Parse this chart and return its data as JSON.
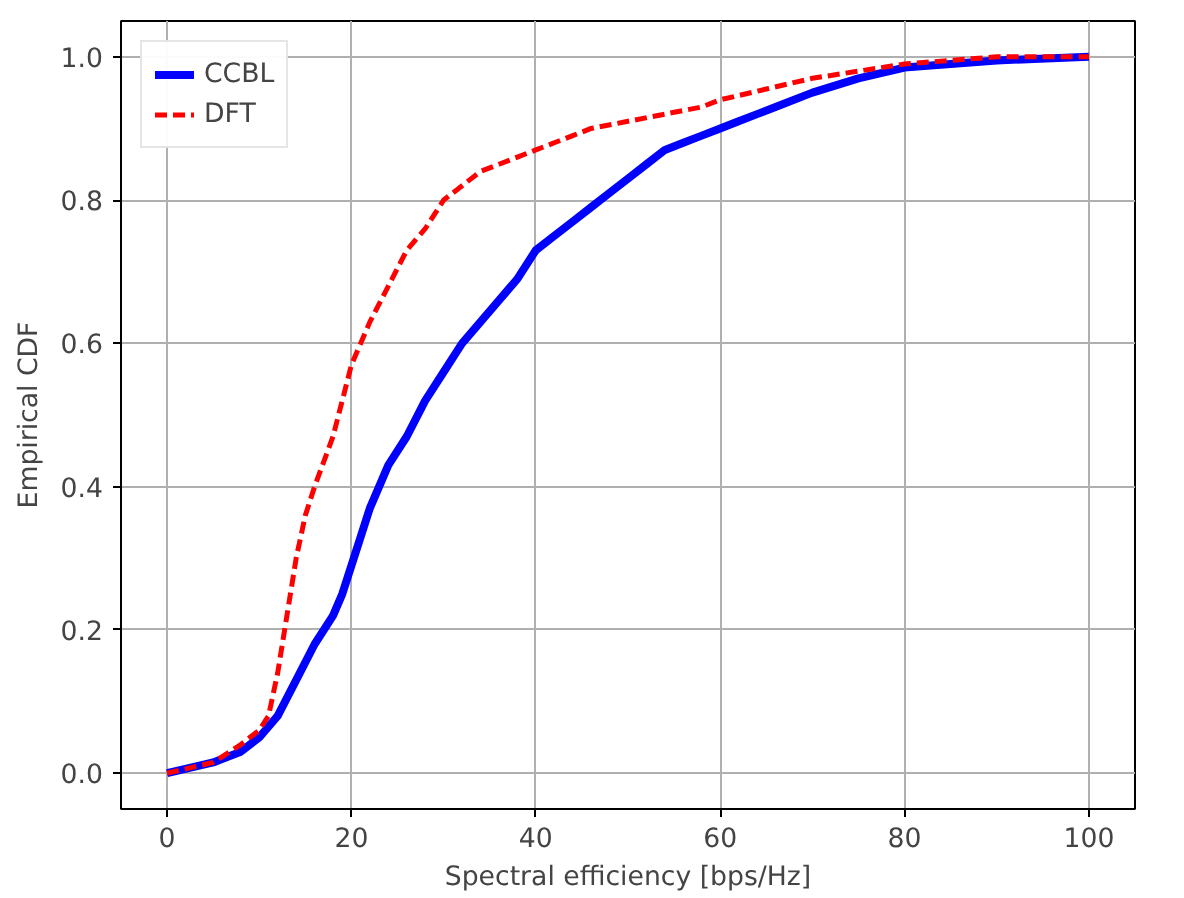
{
  "chart_data": {
    "type": "line",
    "xlabel": "Spectral efficiency [bps/Hz]",
    "ylabel": "Empirical CDF",
    "xlim": [
      -5,
      105
    ],
    "ylim": [
      -0.05,
      1.05
    ],
    "xticks": [
      0,
      20,
      40,
      60,
      80,
      100
    ],
    "yticks": [
      {
        "value": 0,
        "label": "0.0"
      },
      {
        "value": 0.2,
        "label": "0.2"
      },
      {
        "value": 0.4,
        "label": "0.4"
      },
      {
        "value": 0.6,
        "label": "0.6"
      },
      {
        "value": 0.8,
        "label": "0.8"
      },
      {
        "value": 1,
        "label": "1.0"
      }
    ],
    "grid": true,
    "legend": "top left",
    "series": [
      {
        "name": "CCBL",
        "color": "#0000ff",
        "line_style": "solid",
        "x": [
          0,
          5,
          8,
          10,
          12,
          14,
          16,
          18,
          19,
          20,
          22,
          24,
          26,
          28,
          30,
          32,
          34,
          36,
          38,
          40,
          42,
          44,
          46,
          48,
          50,
          52,
          54,
          56,
          58,
          60,
          62,
          64,
          66,
          70,
          75,
          80,
          85,
          90,
          100
        ],
        "values": [
          0,
          0.015,
          0.03,
          0.05,
          0.08,
          0.13,
          0.18,
          0.22,
          0.25,
          0.29,
          0.37,
          0.43,
          0.47,
          0.52,
          0.56,
          0.6,
          0.63,
          0.66,
          0.69,
          0.73,
          0.75,
          0.77,
          0.79,
          0.81,
          0.83,
          0.85,
          0.87,
          0.88,
          0.89,
          0.9,
          0.91,
          0.92,
          0.93,
          0.95,
          0.97,
          0.985,
          0.99,
          0.995,
          1.0
        ]
      },
      {
        "name": "DFT",
        "color": "#ff0000",
        "line_style": "dashed",
        "x": [
          0,
          5,
          8,
          10,
          11,
          12,
          13,
          14,
          15,
          16,
          18,
          19,
          20,
          22,
          24,
          26,
          28,
          30,
          32,
          34,
          36,
          38,
          40,
          42,
          44,
          46,
          50,
          54,
          58,
          60,
          65,
          70,
          75,
          80,
          85,
          90,
          100
        ],
        "values": [
          0,
          0.015,
          0.04,
          0.06,
          0.08,
          0.14,
          0.22,
          0.3,
          0.36,
          0.4,
          0.47,
          0.52,
          0.57,
          0.63,
          0.68,
          0.73,
          0.76,
          0.8,
          0.82,
          0.84,
          0.85,
          0.86,
          0.87,
          0.88,
          0.89,
          0.9,
          0.91,
          0.92,
          0.93,
          0.94,
          0.955,
          0.97,
          0.98,
          0.99,
          0.995,
          1.0,
          1.0
        ]
      }
    ]
  }
}
